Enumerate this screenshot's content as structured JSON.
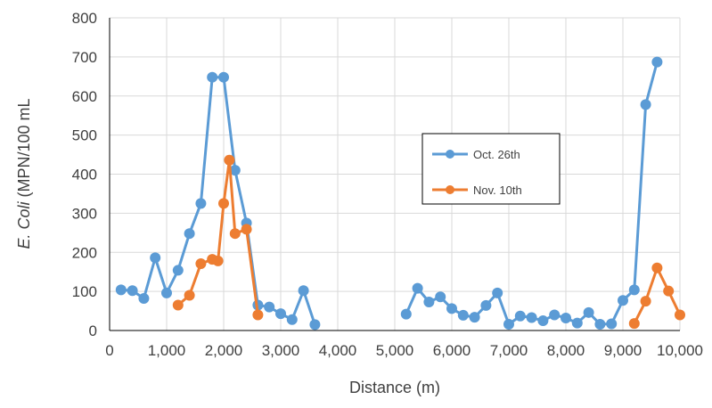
{
  "chart_data": {
    "type": "line",
    "xlabel": "Distance (m)",
    "ylabel_italic": "E. Coli",
    "ylabel_rest": " (MPN/100 mL",
    "xlim": [
      0,
      10000
    ],
    "ylim": [
      0,
      800
    ],
    "x_ticks": [
      0,
      1000,
      2000,
      3000,
      4000,
      5000,
      6000,
      7000,
      8000,
      9000,
      10000
    ],
    "x_tick_labels": [
      "0",
      "1,000",
      "2,000",
      "3,000",
      "4,000",
      "5,000",
      "6,000",
      "7,000",
      "8,000",
      "9,000",
      "10,000"
    ],
    "y_ticks": [
      0,
      100,
      200,
      300,
      400,
      500,
      600,
      700,
      800
    ],
    "y_tick_labels": [
      "0",
      "100",
      "200",
      "300",
      "400",
      "500",
      "600",
      "700",
      "800"
    ],
    "grid": true,
    "legend_position": "center-right",
    "series": [
      {
        "name": "Oct. 26th",
        "color": "#5B9BD5",
        "segments": [
          [
            [
              200,
              104
            ],
            [
              400,
              102
            ],
            [
              600,
              82
            ],
            [
              800,
              186
            ],
            [
              1000,
              96
            ],
            [
              1200,
              154
            ],
            [
              1400,
              248
            ],
            [
              1600,
              325
            ],
            [
              1800,
              648
            ],
            [
              2000,
              648
            ],
            [
              2200,
              410
            ],
            [
              2400,
              275
            ],
            [
              2600,
              65
            ],
            [
              2800,
              60
            ],
            [
              3000,
              43
            ],
            [
              3200,
              28
            ],
            [
              3400,
              102
            ],
            [
              3600,
              15
            ]
          ],
          [
            [
              5200,
              42
            ],
            [
              5400,
              108
            ],
            [
              5600,
              73
            ],
            [
              5800,
              86
            ],
            [
              6000,
              56
            ],
            [
              6200,
              39
            ],
            [
              6400,
              34
            ],
            [
              6600,
              64
            ],
            [
              6800,
              96
            ],
            [
              7000,
              16
            ],
            [
              7200,
              37
            ],
            [
              7400,
              33
            ],
            [
              7600,
              25
            ],
            [
              7800,
              40
            ],
            [
              8000,
              32
            ],
            [
              8200,
              19
            ],
            [
              8400,
              46
            ],
            [
              8600,
              16
            ],
            [
              8800,
              17
            ],
            [
              9000,
              77
            ],
            [
              9200,
              104
            ],
            [
              9400,
              578
            ],
            [
              9600,
              687
            ]
          ]
        ]
      },
      {
        "name": "Nov. 10th",
        "color": "#ED7D31",
        "segments": [
          [
            [
              1200,
              65
            ],
            [
              1400,
              90
            ],
            [
              1600,
              171
            ],
            [
              1800,
              182
            ],
            [
              1900,
              178
            ],
            [
              2000,
              325
            ],
            [
              2100,
              436
            ],
            [
              2200,
              248
            ],
            [
              2400,
              259
            ],
            [
              2600,
              40
            ]
          ],
          [
            [
              9200,
              18
            ],
            [
              9400,
              75
            ],
            [
              9600,
              160
            ],
            [
              9800,
              101
            ],
            [
              10000,
              40
            ]
          ]
        ]
      }
    ]
  }
}
